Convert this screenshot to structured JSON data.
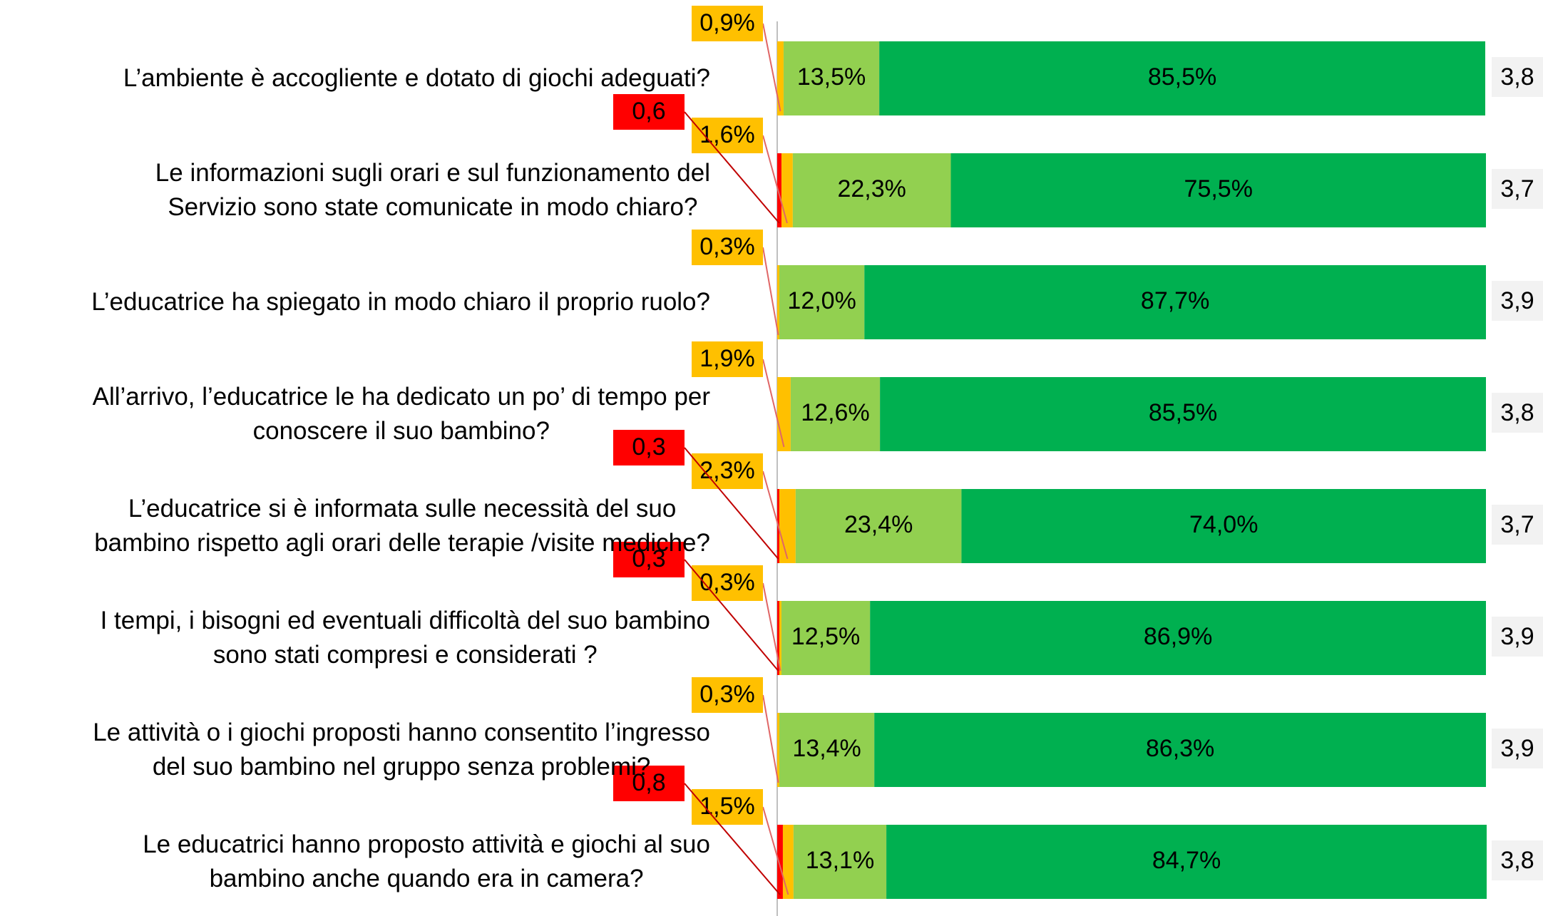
{
  "chart_data": {
    "type": "stacked-bar",
    "categories": [
      "L’ambiente è accogliente e dotato di giochi adeguati?",
      "Le informazioni sugli orari e sul funzionamento del\nServizio sono state comunicate in modo chiaro?",
      "L’educatrice ha spiegato in modo chiaro il proprio ruolo?",
      "All’arrivo, l’educatrice le ha dedicato un po’ di tempo per\nconoscere il suo bambino?",
      "L’educatrice si è informata sulle necessità del suo\nbambino rispetto agli orari delle terapie /visite mediche?",
      "I tempi, i bisogni ed eventuali difficoltà del suo bambino\nsono stati compresi e considerati ?",
      "Le attività o i giochi proposti hanno consentito l’ingresso\ndel suo bambino nel gruppo senza problemi?",
      "Le educatrici hanno proposto attività e giochi al suo\nbambino anche quando era in camera?"
    ],
    "series": [
      {
        "color": "#ff0000",
        "values": [
          0,
          0.6,
          0,
          0,
          0.3,
          0.3,
          0,
          0.8
        ],
        "value_labels": [
          null,
          "0,6",
          null,
          null,
          "0,3",
          "0,3",
          null,
          "0,8"
        ]
      },
      {
        "color": "#ffc000",
        "values": [
          0.9,
          1.6,
          0.3,
          1.9,
          2.3,
          0.3,
          0.3,
          1.5
        ],
        "value_labels": [
          "0,9%",
          "1,6%",
          "0,3%",
          "1,9%",
          "2,3%",
          "0,3%",
          "0,3%",
          "1,5%"
        ]
      },
      {
        "color": "#92d050",
        "values": [
          13.5,
          22.3,
          12.0,
          12.6,
          23.4,
          12.5,
          13.4,
          13.1
        ],
        "value_labels": [
          "13,5%",
          "22,3%",
          "12,0%",
          "12,6%",
          "23,4%",
          "12,5%",
          "13,4%",
          "13,1%"
        ]
      },
      {
        "color": "#00b050",
        "values": [
          85.5,
          75.5,
          87.7,
          85.5,
          74.0,
          86.9,
          86.3,
          84.7
        ],
        "value_labels": [
          "85,5%",
          "75,5%",
          "87,7%",
          "85,5%",
          "74,0%",
          "86,9%",
          "86,3%",
          "84,7%"
        ]
      }
    ],
    "scores": {
      "values": [
        3.8,
        3.7,
        3.9,
        3.8,
        3.7,
        3.9,
        3.9,
        3.8
      ],
      "value_labels": [
        "3,8",
        "3,7",
        "3,9",
        "3,8",
        "3,7",
        "3,9",
        "3,9",
        "3,8"
      ]
    },
    "xlim": [
      0,
      100
    ]
  }
}
